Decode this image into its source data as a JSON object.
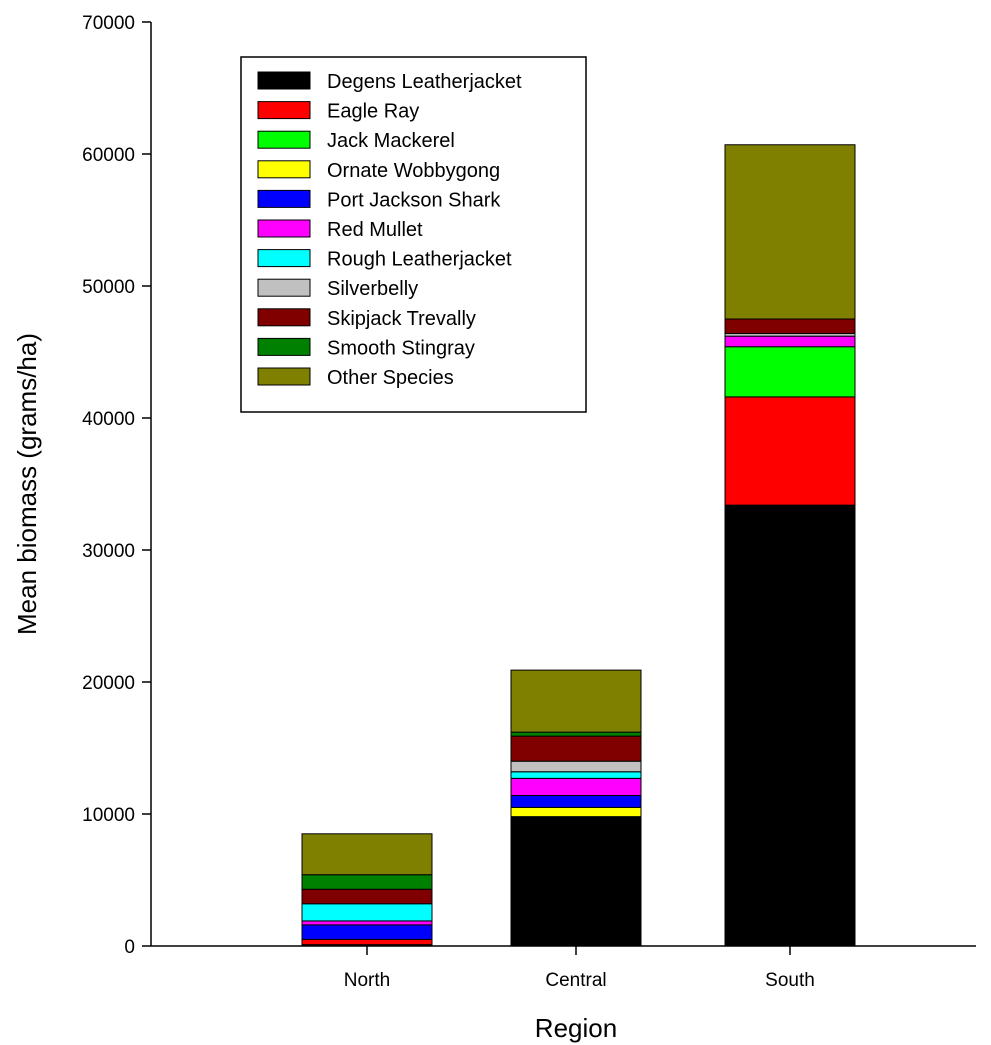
{
  "chart_data": {
    "type": "bar",
    "stacked": true,
    "xlabel": "Region",
    "ylabel": "Mean biomass (grams/ha)",
    "ylim": [
      0,
      70000
    ],
    "yticks": [
      0,
      10000,
      20000,
      30000,
      40000,
      50000,
      60000,
      70000
    ],
    "categories": [
      "North",
      "Central",
      "South"
    ],
    "legend_position": "top-left",
    "grid": false,
    "series": [
      {
        "name": "Degens Leatherjacket",
        "color": "#000000",
        "values": [
          100,
          9800,
          33400
        ]
      },
      {
        "name": "Eagle Ray",
        "color": "#ff0000",
        "values": [
          400,
          0,
          8200
        ]
      },
      {
        "name": "Jack Mackerel",
        "color": "#00ff00",
        "values": [
          0,
          0,
          3800
        ]
      },
      {
        "name": "Ornate Wobbygong",
        "color": "#ffff00",
        "values": [
          0,
          700,
          0
        ]
      },
      {
        "name": "Port Jackson Shark",
        "color": "#0000ff",
        "values": [
          1100,
          900,
          0
        ]
      },
      {
        "name": "Red Mullet",
        "color": "#ff00ff",
        "values": [
          300,
          1300,
          800
        ]
      },
      {
        "name": "Rough Leatherjacket",
        "color": "#00ffff",
        "values": [
          1300,
          500,
          0
        ]
      },
      {
        "name": "Silverbelly",
        "color": "#c0c0c0",
        "values": [
          0,
          800,
          200
        ]
      },
      {
        "name": "Skipjack Trevally",
        "color": "#800000",
        "values": [
          1100,
          1900,
          1100
        ]
      },
      {
        "name": "Smooth Stingray",
        "color": "#008000",
        "values": [
          1100,
          300,
          0
        ]
      },
      {
        "name": "Other Species",
        "color": "#808000",
        "values": [
          3100,
          4700,
          13200
        ]
      }
    ]
  }
}
